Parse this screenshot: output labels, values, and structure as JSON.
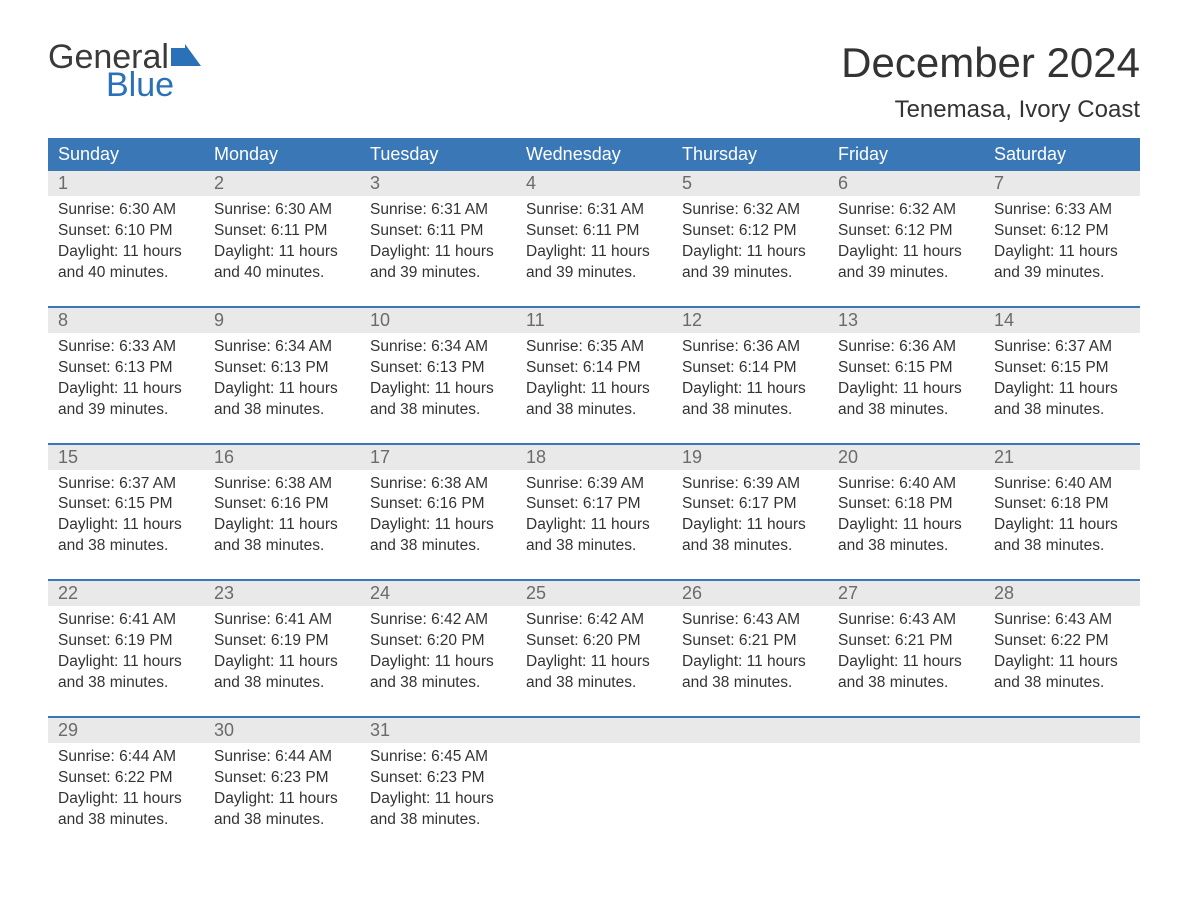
{
  "logo": {
    "line1": "General",
    "line2": "Blue"
  },
  "title": "December 2024",
  "location": "Tenemasa, Ivory Coast",
  "colors": {
    "header_bg": "#3a77b7",
    "header_text": "#ffffff",
    "daynum_bg": "#e9e9e9",
    "daynum_text": "#6b6b6b",
    "body_text": "#333333",
    "logo_blue": "#2b71b8",
    "week_border": "#3a77b7",
    "page_bg": "#ffffff"
  },
  "typography": {
    "title_fontsize": 42,
    "location_fontsize": 24,
    "header_fontsize": 18,
    "daynum_fontsize": 18,
    "body_fontsize": 15.5,
    "logo_fontsize": 34
  },
  "layout": {
    "columns": 7,
    "weeks": 5
  },
  "weekdays": [
    "Sunday",
    "Monday",
    "Tuesday",
    "Wednesday",
    "Thursday",
    "Friday",
    "Saturday"
  ],
  "days": [
    {
      "n": 1,
      "sunrise": "6:30 AM",
      "sunset": "6:10 PM",
      "daylight": "11 hours and 40 minutes."
    },
    {
      "n": 2,
      "sunrise": "6:30 AM",
      "sunset": "6:11 PM",
      "daylight": "11 hours and 40 minutes."
    },
    {
      "n": 3,
      "sunrise": "6:31 AM",
      "sunset": "6:11 PM",
      "daylight": "11 hours and 39 minutes."
    },
    {
      "n": 4,
      "sunrise": "6:31 AM",
      "sunset": "6:11 PM",
      "daylight": "11 hours and 39 minutes."
    },
    {
      "n": 5,
      "sunrise": "6:32 AM",
      "sunset": "6:12 PM",
      "daylight": "11 hours and 39 minutes."
    },
    {
      "n": 6,
      "sunrise": "6:32 AM",
      "sunset": "6:12 PM",
      "daylight": "11 hours and 39 minutes."
    },
    {
      "n": 7,
      "sunrise": "6:33 AM",
      "sunset": "6:12 PM",
      "daylight": "11 hours and 39 minutes."
    },
    {
      "n": 8,
      "sunrise": "6:33 AM",
      "sunset": "6:13 PM",
      "daylight": "11 hours and 39 minutes."
    },
    {
      "n": 9,
      "sunrise": "6:34 AM",
      "sunset": "6:13 PM",
      "daylight": "11 hours and 38 minutes."
    },
    {
      "n": 10,
      "sunrise": "6:34 AM",
      "sunset": "6:13 PM",
      "daylight": "11 hours and 38 minutes."
    },
    {
      "n": 11,
      "sunrise": "6:35 AM",
      "sunset": "6:14 PM",
      "daylight": "11 hours and 38 minutes."
    },
    {
      "n": 12,
      "sunrise": "6:36 AM",
      "sunset": "6:14 PM",
      "daylight": "11 hours and 38 minutes."
    },
    {
      "n": 13,
      "sunrise": "6:36 AM",
      "sunset": "6:15 PM",
      "daylight": "11 hours and 38 minutes."
    },
    {
      "n": 14,
      "sunrise": "6:37 AM",
      "sunset": "6:15 PM",
      "daylight": "11 hours and 38 minutes."
    },
    {
      "n": 15,
      "sunrise": "6:37 AM",
      "sunset": "6:15 PM",
      "daylight": "11 hours and 38 minutes."
    },
    {
      "n": 16,
      "sunrise": "6:38 AM",
      "sunset": "6:16 PM",
      "daylight": "11 hours and 38 minutes."
    },
    {
      "n": 17,
      "sunrise": "6:38 AM",
      "sunset": "6:16 PM",
      "daylight": "11 hours and 38 minutes."
    },
    {
      "n": 18,
      "sunrise": "6:39 AM",
      "sunset": "6:17 PM",
      "daylight": "11 hours and 38 minutes."
    },
    {
      "n": 19,
      "sunrise": "6:39 AM",
      "sunset": "6:17 PM",
      "daylight": "11 hours and 38 minutes."
    },
    {
      "n": 20,
      "sunrise": "6:40 AM",
      "sunset": "6:18 PM",
      "daylight": "11 hours and 38 minutes."
    },
    {
      "n": 21,
      "sunrise": "6:40 AM",
      "sunset": "6:18 PM",
      "daylight": "11 hours and 38 minutes."
    },
    {
      "n": 22,
      "sunrise": "6:41 AM",
      "sunset": "6:19 PM",
      "daylight": "11 hours and 38 minutes."
    },
    {
      "n": 23,
      "sunrise": "6:41 AM",
      "sunset": "6:19 PM",
      "daylight": "11 hours and 38 minutes."
    },
    {
      "n": 24,
      "sunrise": "6:42 AM",
      "sunset": "6:20 PM",
      "daylight": "11 hours and 38 minutes."
    },
    {
      "n": 25,
      "sunrise": "6:42 AM",
      "sunset": "6:20 PM",
      "daylight": "11 hours and 38 minutes."
    },
    {
      "n": 26,
      "sunrise": "6:43 AM",
      "sunset": "6:21 PM",
      "daylight": "11 hours and 38 minutes."
    },
    {
      "n": 27,
      "sunrise": "6:43 AM",
      "sunset": "6:21 PM",
      "daylight": "11 hours and 38 minutes."
    },
    {
      "n": 28,
      "sunrise": "6:43 AM",
      "sunset": "6:22 PM",
      "daylight": "11 hours and 38 minutes."
    },
    {
      "n": 29,
      "sunrise": "6:44 AM",
      "sunset": "6:22 PM",
      "daylight": "11 hours and 38 minutes."
    },
    {
      "n": 30,
      "sunrise": "6:44 AM",
      "sunset": "6:23 PM",
      "daylight": "11 hours and 38 minutes."
    },
    {
      "n": 31,
      "sunrise": "6:45 AM",
      "sunset": "6:23 PM",
      "daylight": "11 hours and 38 minutes."
    }
  ],
  "labels": {
    "sunrise_prefix": "Sunrise: ",
    "sunset_prefix": "Sunset: ",
    "daylight_prefix": "Daylight: "
  }
}
